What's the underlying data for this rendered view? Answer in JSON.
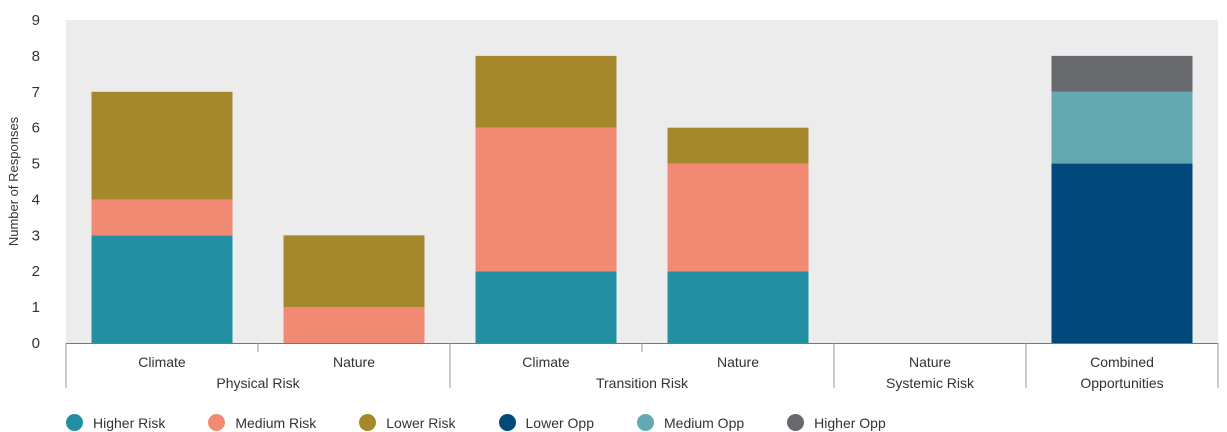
{
  "chart_data": {
    "type": "bar",
    "stacked": true,
    "ylabel": "Number of Responses",
    "xlabel": "",
    "ylim": [
      0,
      9
    ],
    "yticks": [
      "0",
      "1",
      "2",
      "3",
      "4",
      "5",
      "6",
      "7",
      "8",
      "9"
    ],
    "grid": false,
    "legend_position": "bottom",
    "groups": [
      {
        "label": "Physical Risk",
        "categories": [
          "Climate",
          "Nature"
        ]
      },
      {
        "label": "Transition Risk",
        "categories": [
          "Climate",
          "Nature"
        ]
      },
      {
        "label": "Systemic Risk",
        "categories": [
          "Nature"
        ]
      },
      {
        "label": "Combined Opportunities",
        "categories": [
          ""
        ]
      }
    ],
    "categories": [
      "Physical Risk – Climate",
      "Physical Risk – Nature",
      "Transition Risk – Climate",
      "Transition Risk – Nature",
      "Systemic Risk – Nature",
      "Combined Opportunities"
    ],
    "series": [
      {
        "name": "Higher Risk",
        "color": "#238fa2",
        "values": [
          3,
          0,
          2,
          2,
          0,
          0
        ]
      },
      {
        "name": "Medium Risk",
        "color": "#f18a72",
        "values": [
          1,
          1,
          4,
          3,
          0,
          0
        ]
      },
      {
        "name": "Lower Risk",
        "color": "#a5882c",
        "values": [
          3,
          2,
          2,
          1,
          0,
          0
        ]
      },
      {
        "name": "Lower Opp",
        "color": "#00497a",
        "values": [
          0,
          0,
          0,
          0,
          0,
          5
        ]
      },
      {
        "name": "Medium Opp",
        "color": "#64a8b2",
        "values": [
          0,
          0,
          0,
          0,
          0,
          2
        ]
      },
      {
        "name": "Higher Opp",
        "color": "#67696d",
        "values": [
          0,
          0,
          0,
          0,
          0,
          1
        ]
      }
    ]
  }
}
